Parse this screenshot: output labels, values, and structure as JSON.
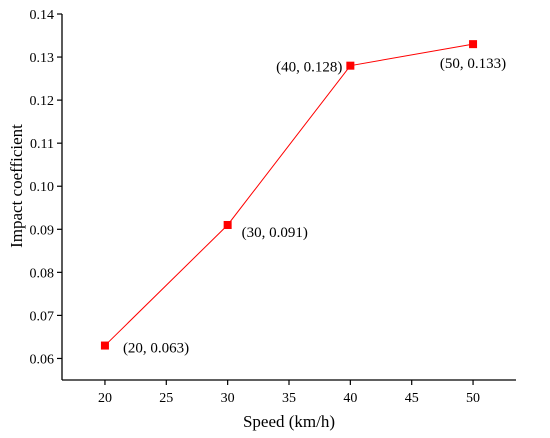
{
  "chart_data": {
    "type": "line",
    "xlabel": "Speed (km/h)",
    "ylabel": "Impact coefficient",
    "xlim": [
      16.5,
      53.5
    ],
    "ylim": [
      0.055,
      0.14
    ],
    "xticks": [
      20,
      25,
      30,
      35,
      40,
      45,
      50
    ],
    "yticks": [
      0.06,
      0.07,
      0.08,
      0.09,
      0.1,
      0.11,
      0.12,
      0.13,
      0.14
    ],
    "xtick_labels": [
      "20",
      "25",
      "30",
      "35",
      "40",
      "45",
      "50"
    ],
    "ytick_labels": [
      "0.06",
      "0.07",
      "0.08",
      "0.09",
      "0.10",
      "0.11",
      "0.12",
      "0.13",
      "0.14"
    ],
    "grid": false,
    "series": [
      {
        "x": [
          20,
          30,
          40,
          50
        ],
        "y": [
          0.063,
          0.091,
          0.128,
          0.133
        ],
        "color": "#ff0000",
        "marker": "square"
      }
    ],
    "annotations": [
      "(20, 0.063)",
      "(30, 0.091)",
      "(40, 0.128)",
      "(50, 0.133)"
    ]
  }
}
